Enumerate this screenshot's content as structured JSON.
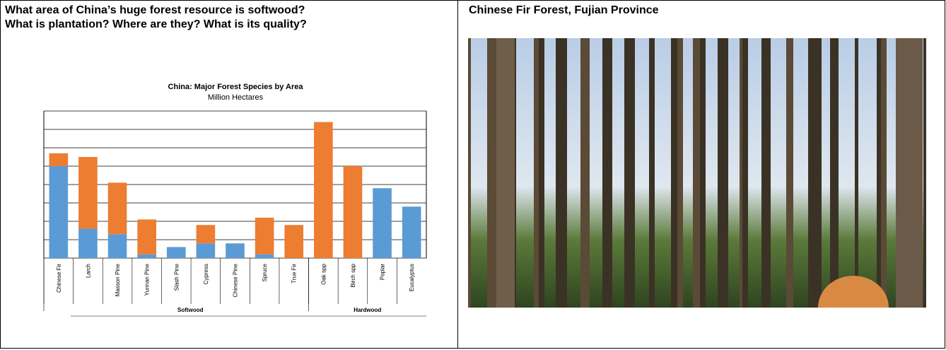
{
  "left": {
    "heading": [
      "What area of China’s huge forest resource is softwood?",
      "What is plantation? Where are they? What is its quality?"
    ]
  },
  "chart_data": {
    "type": "bar",
    "stacked": true,
    "title": "China: Major Forest Species by Area",
    "subtitle": "Million Hectares",
    "categories": [
      "Chinese Fir",
      "Larch",
      "Masson Pine",
      "Yunnan Pine",
      "Slash Pine",
      "Cypress",
      "Chinese Pine",
      "Spruce",
      "True Fir",
      "Oak spp",
      "Birch spp",
      "Poplar",
      "Eucalyptus"
    ],
    "series": [
      {
        "color": "#5b9bd5",
        "values": [
          5.0,
          1.6,
          1.3,
          0.2,
          0.6,
          0.8,
          0.8,
          0.2,
          0,
          0,
          0,
          3.8,
          2.8
        ]
      },
      {
        "color": "#ed7d31",
        "values": [
          0.7,
          3.9,
          2.8,
          1.9,
          0,
          1.0,
          0,
          2.0,
          1.8,
          7.4,
          5.0,
          0,
          0
        ]
      }
    ],
    "group_labels": [
      "Softwood",
      "Hardwood"
    ],
    "group_sizes": [
      9,
      4
    ],
    "ylim": [
      0,
      8
    ],
    "yticks": [
      0,
      1,
      2,
      3,
      4,
      5,
      6,
      7,
      8
    ],
    "grid": true
  },
  "right": {
    "heading": "Chinese Fir Forest, Fujian Province"
  }
}
